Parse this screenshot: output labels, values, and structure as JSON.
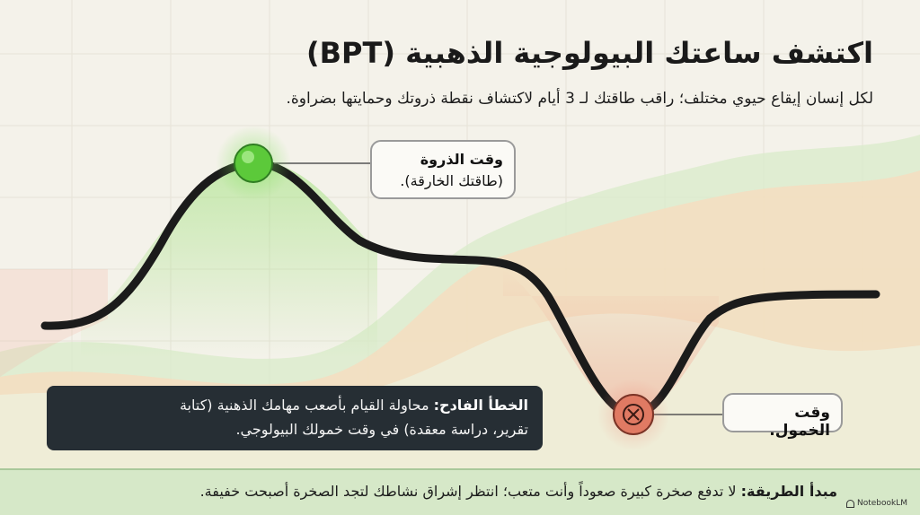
{
  "title": "اكتشف ساعتك البيولوجية الذهبية (BPT)",
  "subtitle": "لكل إنسان إيقاع حيوي مختلف؛ راقب طاقتك لـ 3 أيام لاكتشاف نقطة ذروتك وحمايتها بضراوة.",
  "peak": {
    "label": "وقت الذروة",
    "sublabel": "(طاقتك الخارقة).",
    "color": "#5cc93a"
  },
  "trough": {
    "label": "وقت الخمول.",
    "icon": "x-icon",
    "color": "#e07a63"
  },
  "mistake": {
    "label": "الخطأ الفادح:",
    "line1": "محاولة القيام بأصعب مهامك الذهنية (كتابة",
    "line2": "تقرير، دراسة معقدة) في وقت خمولك البيولوجي."
  },
  "footer": {
    "label": "مبدأ الطريقة:",
    "text": "لا تدفع صخرة كبيرة صعوداً وأنت متعب؛ انتظر إشراق نشاطك لتجد الصخرة أصبحت خفيفة."
  },
  "brand": "NotebookLM",
  "colors": {
    "curve": "#1b1b1b",
    "background": "#f4f2ea",
    "green_band": "#c9e3b4",
    "peach_band": "#f7ddc1",
    "footer_bg": "#d6e8c8",
    "mistake_bg": "#262e34"
  }
}
